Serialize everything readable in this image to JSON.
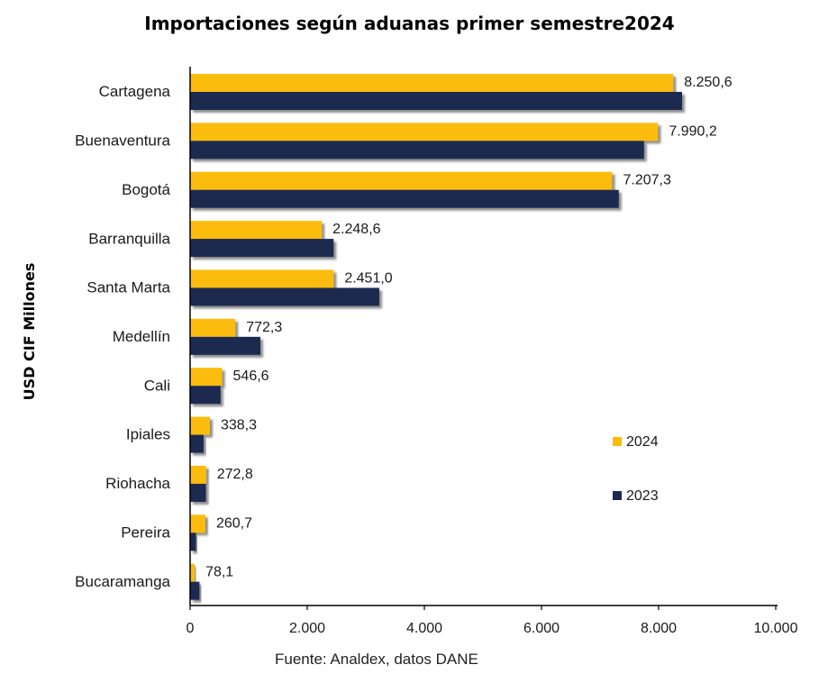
{
  "chart_data": {
    "type": "bar",
    "orientation": "horizontal",
    "title": "Importaciones según aduanas primer semestre2024",
    "ylabel": "USD CIF Millones",
    "xlabel": "",
    "source": "Fuente: Analdex, datos DANE",
    "xlim": [
      0,
      10000
    ],
    "xticks": [
      0,
      2000,
      4000,
      6000,
      8000,
      10000
    ],
    "xtick_labels": [
      "0",
      "2.000",
      "4.000",
      "6.000",
      "8.000",
      "10.000"
    ],
    "categories": [
      "Cartagena",
      "Buenaventura",
      "Bogotá",
      "Barranquilla",
      "Santa Marta",
      "Medellín",
      "Cali",
      "Ipiales",
      "Riohacha",
      "Pereira",
      "Bucaramanga"
    ],
    "series": [
      {
        "name": "2024",
        "color": "#fbbc10",
        "values": [
          8250.6,
          7990.2,
          7207.3,
          2248.6,
          2451.0,
          772.3,
          546.6,
          338.3,
          272.8,
          260.7,
          78.1
        ],
        "labels": [
          "8.250,6",
          "7.990,2",
          "7.207,3",
          "2.248,6",
          "2.451,0",
          "772,3",
          "546,6",
          "338,3",
          "272,8",
          "260,7",
          "78,1"
        ]
      },
      {
        "name": "2023",
        "color": "#1f2a50",
        "values": [
          8400,
          7750,
          7320,
          2450,
          3230,
          1200,
          520,
          230,
          270,
          100,
          160
        ]
      }
    ],
    "legend": [
      "2024",
      "2023"
    ],
    "grid": false
  }
}
